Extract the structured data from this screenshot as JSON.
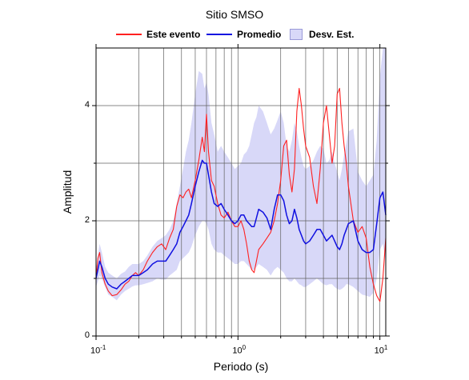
{
  "chart_data": {
    "type": "line",
    "title": "Sitio SMSO",
    "xlabel": "Periodo (s)",
    "ylabel": "Amplitud",
    "x_scale": "log",
    "xlim": [
      0.1,
      11
    ],
    "ylim": [
      0,
      5
    ],
    "grid": true,
    "legend_position": "top",
    "x_ticks": [
      {
        "value": 0.1,
        "base": "10",
        "exp": "-1"
      },
      {
        "value": 1,
        "base": "10",
        "exp": "0"
      },
      {
        "value": 10,
        "base": "10",
        "exp": "1"
      }
    ],
    "y_ticks": [
      0,
      2,
      4
    ],
    "x_minor_ticks": [
      0.2,
      0.3,
      0.4,
      0.5,
      0.6,
      0.7,
      0.8,
      0.9,
      2,
      3,
      4,
      5,
      6,
      7,
      8,
      9
    ],
    "y_minor_ticks": [
      1,
      3
    ],
    "series": [
      {
        "name": "Este evento",
        "color": "#ff2020",
        "x": [
          0.1,
          0.103,
          0.106,
          0.11,
          0.116,
          0.122,
          0.13,
          0.14,
          0.15,
          0.16,
          0.17,
          0.18,
          0.19,
          0.2,
          0.215,
          0.23,
          0.25,
          0.27,
          0.29,
          0.31,
          0.33,
          0.35,
          0.37,
          0.39,
          0.41,
          0.43,
          0.45,
          0.47,
          0.5,
          0.53,
          0.56,
          0.58,
          0.6,
          0.62,
          0.65,
          0.68,
          0.72,
          0.76,
          0.8,
          0.85,
          0.9,
          0.95,
          1.0,
          1.05,
          1.1,
          1.15,
          1.2,
          1.25,
          1.3,
          1.35,
          1.4,
          1.5,
          1.6,
          1.7,
          1.8,
          1.9,
          2.0,
          2.1,
          2.2,
          2.3,
          2.4,
          2.5,
          2.6,
          2.7,
          2.8,
          2.9,
          3.0,
          3.2,
          3.4,
          3.6,
          3.8,
          4.0,
          4.2,
          4.4,
          4.6,
          4.8,
          5.0,
          5.2,
          5.4,
          5.6,
          5.8,
          6.0,
          6.5,
          7.0,
          7.5,
          8.0,
          8.5,
          9.0,
          9.5,
          10.0,
          10.5,
          11.0
        ],
        "y": [
          1.0,
          1.35,
          1.45,
          1.1,
          0.9,
          0.78,
          0.7,
          0.72,
          0.8,
          0.9,
          0.95,
          1.05,
          1.1,
          1.05,
          1.15,
          1.3,
          1.45,
          1.55,
          1.6,
          1.5,
          1.7,
          1.85,
          2.25,
          2.45,
          2.4,
          2.5,
          2.55,
          2.4,
          2.7,
          3.05,
          3.45,
          3.2,
          3.85,
          3.2,
          2.7,
          2.6,
          2.3,
          2.1,
          2.05,
          2.15,
          2.0,
          1.9,
          1.9,
          2.0,
          1.85,
          1.6,
          1.3,
          1.15,
          1.1,
          1.3,
          1.5,
          1.6,
          1.7,
          1.8,
          2.0,
          2.3,
          2.7,
          3.3,
          3.4,
          2.8,
          2.5,
          2.9,
          3.9,
          4.3,
          4.0,
          3.6,
          3.3,
          3.1,
          2.6,
          2.3,
          2.9,
          3.7,
          4.0,
          3.5,
          3.0,
          3.3,
          4.2,
          4.3,
          3.7,
          3.3,
          3.0,
          2.6,
          2.0,
          1.8,
          1.9,
          1.7,
          1.2,
          0.9,
          0.7,
          0.6,
          1.0,
          1.7
        ]
      },
      {
        "name": "Promedio",
        "color": "#1010e0",
        "x": [
          0.1,
          0.103,
          0.106,
          0.11,
          0.116,
          0.122,
          0.13,
          0.14,
          0.15,
          0.16,
          0.17,
          0.18,
          0.19,
          0.2,
          0.215,
          0.23,
          0.25,
          0.27,
          0.29,
          0.31,
          0.33,
          0.35,
          0.37,
          0.39,
          0.41,
          0.43,
          0.45,
          0.47,
          0.5,
          0.53,
          0.56,
          0.58,
          0.6,
          0.62,
          0.65,
          0.68,
          0.72,
          0.76,
          0.8,
          0.85,
          0.9,
          0.95,
          1.0,
          1.05,
          1.1,
          1.15,
          1.2,
          1.25,
          1.3,
          1.35,
          1.4,
          1.5,
          1.6,
          1.7,
          1.8,
          1.9,
          2.0,
          2.1,
          2.2,
          2.3,
          2.4,
          2.5,
          2.6,
          2.7,
          2.8,
          2.9,
          3.0,
          3.2,
          3.4,
          3.6,
          3.8,
          4.0,
          4.2,
          4.4,
          4.6,
          4.8,
          5.0,
          5.2,
          5.4,
          5.6,
          5.8,
          6.0,
          6.5,
          7.0,
          7.5,
          8.0,
          8.5,
          9.0,
          9.5,
          10.0,
          10.5,
          11.0
        ],
        "y": [
          1.0,
          1.15,
          1.3,
          1.2,
          1.0,
          0.9,
          0.85,
          0.82,
          0.9,
          0.95,
          1.0,
          1.05,
          1.05,
          1.05,
          1.1,
          1.15,
          1.25,
          1.3,
          1.3,
          1.3,
          1.4,
          1.5,
          1.6,
          1.8,
          1.9,
          2.0,
          2.1,
          2.3,
          2.6,
          2.85,
          3.05,
          3.0,
          3.0,
          2.8,
          2.5,
          2.3,
          2.25,
          2.3,
          2.2,
          2.1,
          2.0,
          1.95,
          2.0,
          2.1,
          2.1,
          2.0,
          1.95,
          1.9,
          1.9,
          2.05,
          2.2,
          2.15,
          2.05,
          1.85,
          2.2,
          2.45,
          2.45,
          2.35,
          2.1,
          1.95,
          2.0,
          2.2,
          2.05,
          1.85,
          1.75,
          1.65,
          1.6,
          1.65,
          1.75,
          1.85,
          1.85,
          1.75,
          1.65,
          1.7,
          1.75,
          1.65,
          1.55,
          1.5,
          1.6,
          1.75,
          1.85,
          1.95,
          2.0,
          1.65,
          1.5,
          1.45,
          1.45,
          1.5,
          1.95,
          2.4,
          2.5,
          2.1
        ]
      }
    ],
    "band": {
      "name": "Desv. Est.",
      "color": "#d8d8f8",
      "x": [
        0.1,
        0.103,
        0.106,
        0.11,
        0.116,
        0.122,
        0.13,
        0.14,
        0.15,
        0.16,
        0.17,
        0.18,
        0.19,
        0.2,
        0.215,
        0.23,
        0.25,
        0.27,
        0.29,
        0.31,
        0.33,
        0.35,
        0.37,
        0.39,
        0.41,
        0.43,
        0.45,
        0.47,
        0.5,
        0.53,
        0.56,
        0.58,
        0.6,
        0.62,
        0.65,
        0.68,
        0.72,
        0.76,
        0.8,
        0.85,
        0.9,
        0.95,
        1.0,
        1.05,
        1.1,
        1.15,
        1.2,
        1.25,
        1.3,
        1.35,
        1.4,
        1.5,
        1.6,
        1.7,
        1.8,
        1.9,
        2.0,
        2.1,
        2.2,
        2.3,
        2.4,
        2.5,
        2.6,
        2.7,
        2.8,
        2.9,
        3.0,
        3.2,
        3.4,
        3.6,
        3.8,
        4.0,
        4.2,
        4.4,
        4.6,
        4.8,
        5.0,
        5.2,
        5.4,
        5.6,
        5.8,
        6.0,
        6.5,
        7.0,
        7.5,
        8.0,
        8.5,
        9.0,
        9.5,
        10.0,
        10.5,
        11.0
      ],
      "lower": [
        0.85,
        0.95,
        1.05,
        1.0,
        0.85,
        0.72,
        0.68,
        0.62,
        0.72,
        0.78,
        0.82,
        0.86,
        0.88,
        0.88,
        0.9,
        0.92,
        0.95,
        1.0,
        0.98,
        0.98,
        1.05,
        1.1,
        1.15,
        1.3,
        1.35,
        1.4,
        1.45,
        1.55,
        1.75,
        1.9,
        2.0,
        2.0,
        1.95,
        1.85,
        1.6,
        1.5,
        1.45,
        1.45,
        1.4,
        1.35,
        1.3,
        1.25,
        1.25,
        1.3,
        1.3,
        1.25,
        1.2,
        1.15,
        1.15,
        1.2,
        1.25,
        1.2,
        1.15,
        1.05,
        1.15,
        1.2,
        1.15,
        1.1,
        1.0,
        0.95,
        0.95,
        1.0,
        0.95,
        0.9,
        0.88,
        0.85,
        0.85,
        0.9,
        0.95,
        1.0,
        0.95,
        0.9,
        0.88,
        0.9,
        0.9,
        0.85,
        0.82,
        0.8,
        0.82,
        0.85,
        0.9,
        0.9,
        0.85,
        0.78,
        0.72,
        0.7,
        0.68,
        0.75,
        1.0,
        1.5,
        1.6,
        1.3
      ],
      "upper": [
        1.15,
        1.4,
        1.6,
        1.45,
        1.2,
        1.1,
        1.05,
        1.0,
        1.08,
        1.12,
        1.2,
        1.25,
        1.25,
        1.25,
        1.3,
        1.4,
        1.55,
        1.65,
        1.7,
        1.75,
        1.85,
        2.0,
        2.3,
        2.6,
        2.9,
        3.2,
        3.4,
        3.7,
        4.2,
        4.6,
        4.55,
        4.3,
        4.4,
        4.2,
        3.7,
        3.5,
        3.2,
        3.3,
        3.2,
        3.1,
        3.0,
        2.9,
        2.95,
        3.0,
        3.15,
        3.2,
        3.3,
        3.5,
        3.7,
        3.8,
        4.0,
        3.9,
        3.7,
        3.5,
        3.6,
        3.75,
        3.9,
        3.7,
        3.3,
        3.2,
        3.4,
        3.7,
        3.55,
        3.3,
        3.1,
        2.95,
        2.9,
        2.95,
        3.05,
        3.2,
        3.3,
        3.25,
        3.0,
        3.05,
        3.2,
        3.0,
        2.85,
        2.7,
        2.9,
        3.15,
        3.35,
        3.55,
        3.6,
        2.85,
        2.7,
        2.6,
        2.7,
        2.8,
        3.4,
        4.5,
        5.0,
        5.0
      ]
    }
  }
}
